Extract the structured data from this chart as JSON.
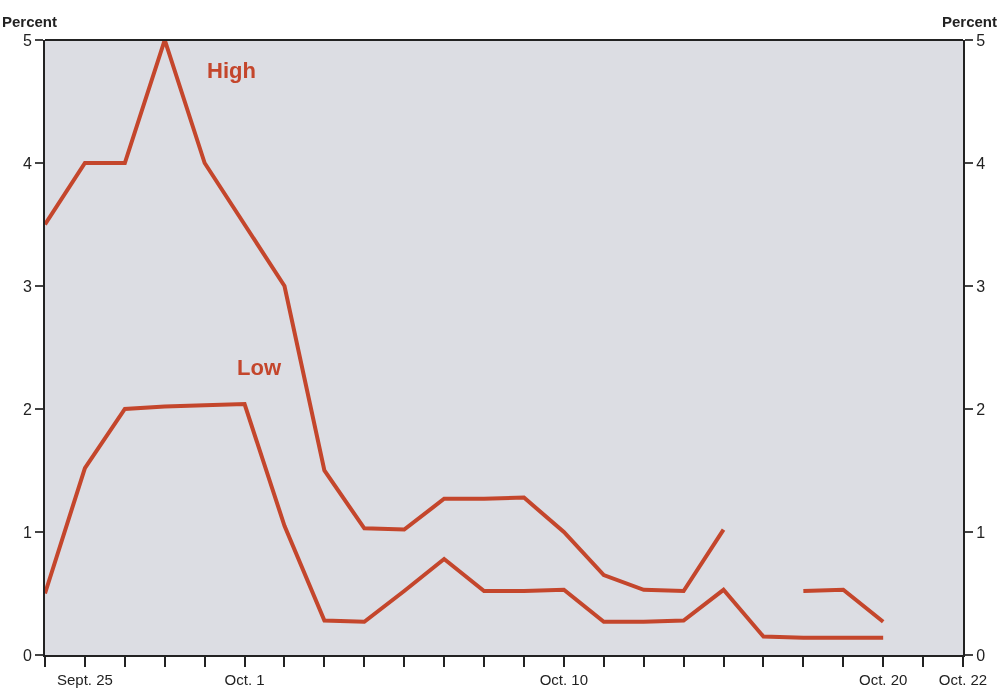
{
  "chart_data": {
    "type": "line",
    "ylabel": "Percent",
    "y2label": "Percent",
    "categories": [
      null,
      "Sept. 25",
      null,
      null,
      null,
      "Oct. 1",
      null,
      null,
      null,
      null,
      null,
      null,
      null,
      "Oct. 10",
      null,
      null,
      null,
      null,
      null,
      null,
      null,
      "Oct. 20",
      null,
      "Oct. 22"
    ],
    "series": [
      {
        "name": "High",
        "color": "#c4462c",
        "values": [
          3.5,
          4.0,
          4.0,
          5.0,
          4.0,
          3.5,
          3.0,
          1.5,
          1.03,
          1.02,
          1.27,
          1.27,
          1.28,
          1.0,
          0.65,
          0.53,
          0.52,
          1.02,
          null,
          0.52,
          0.53,
          0.27,
          null,
          null
        ]
      },
      {
        "name": "Low",
        "color": "#c4462c",
        "values": [
          0.5,
          1.52,
          2.0,
          2.02,
          2.03,
          2.04,
          1.05,
          0.28,
          0.27,
          0.52,
          0.78,
          0.52,
          0.52,
          0.53,
          0.27,
          0.27,
          0.28,
          0.53,
          0.15,
          0.14,
          0.14,
          0.14,
          null,
          null
        ]
      }
    ],
    "ylim": [
      0,
      5
    ],
    "yticks": [
      0,
      1,
      2,
      3,
      4,
      5
    ],
    "y2lim": [
      0,
      5
    ],
    "y2ticks": [
      0,
      1,
      2,
      3,
      4,
      5
    ],
    "grid": false,
    "legend": false,
    "marker": "none",
    "line_style": "solid"
  }
}
